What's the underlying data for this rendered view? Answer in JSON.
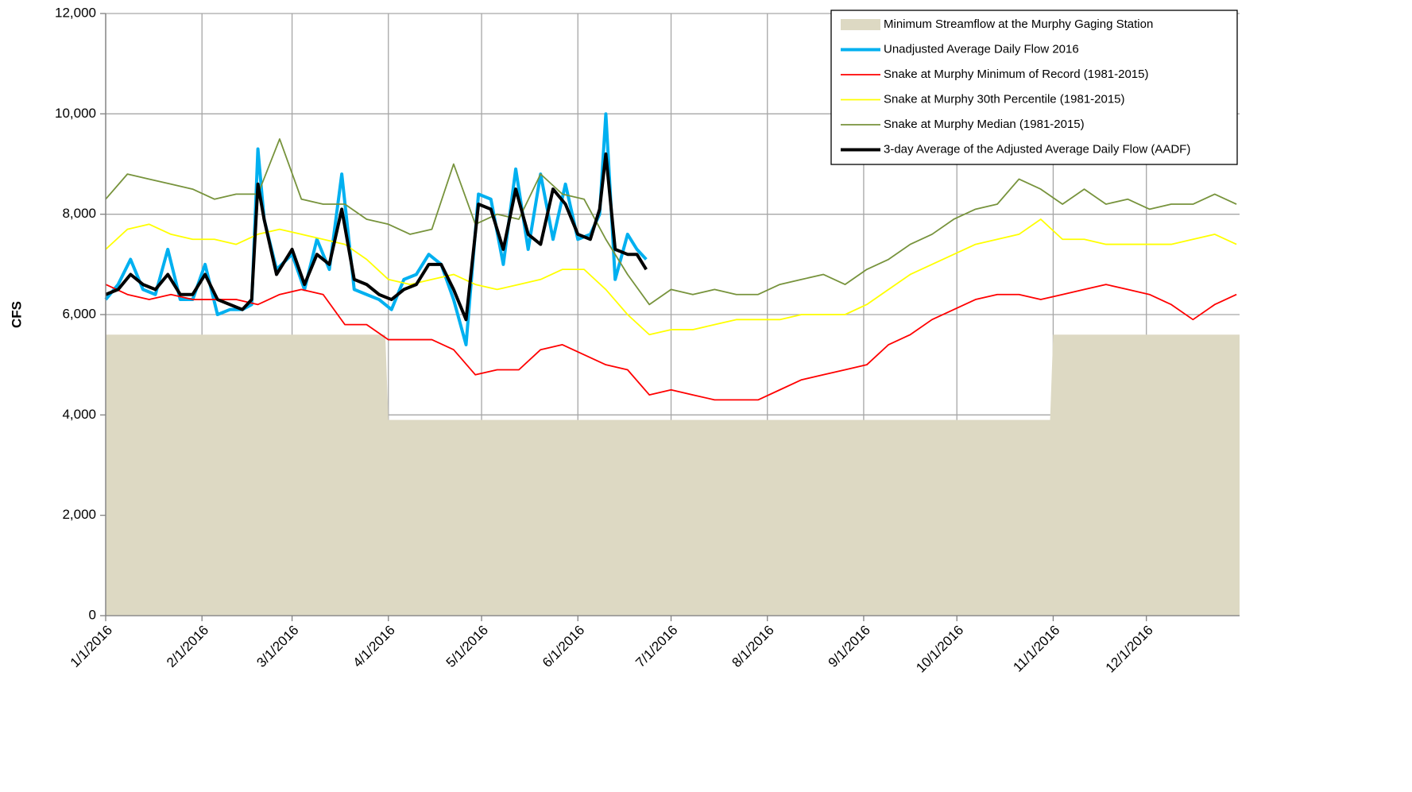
{
  "chart_data": {
    "type": "line",
    "ylabel": "CFS",
    "xlim": [
      "1/1/2016",
      "12/31/2016"
    ],
    "xticks": [
      "1/1/2016",
      "2/1/2016",
      "3/1/2016",
      "4/1/2016",
      "5/1/2016",
      "6/1/2016",
      "7/1/2016",
      "8/1/2016",
      "9/1/2016",
      "10/1/2016",
      "11/1/2016",
      "12/1/2016"
    ],
    "ylim": [
      0,
      12000
    ],
    "yticks": [
      0,
      {
        "value": 2000,
        "label": "2,000"
      },
      {
        "value": 4000,
        "label": "4,000"
      },
      {
        "value": 6000,
        "label": "6,000"
      },
      {
        "value": 8000,
        "label": "8,000"
      },
      {
        "value": 10000,
        "label": "10,000"
      },
      {
        "value": 12000,
        "label": "12,000"
      }
    ],
    "grid": true,
    "legend": "upper right",
    "x": [
      "1/1/2016",
      "1/8/2016",
      "1/15/2016",
      "1/22/2016",
      "1/29/2016",
      "2/5/2016",
      "2/12/2016",
      "2/19/2016",
      "2/26/2016",
      "3/4/2016",
      "3/11/2016",
      "3/18/2016",
      "3/25/2016",
      "4/1/2016",
      "4/8/2016",
      "4/15/2016",
      "4/22/2016",
      "4/29/2016",
      "5/6/2016",
      "5/13/2016",
      "5/20/2016",
      "5/27/2016",
      "6/3/2016",
      "6/10/2016",
      "6/17/2016",
      "6/24/2016",
      "7/1/2016",
      "7/8/2016",
      "7/15/2016",
      "7/22/2016",
      "7/29/2016",
      "8/5/2016",
      "8/12/2016",
      "8/19/2016",
      "8/26/2016",
      "9/2/2016",
      "9/9/2016",
      "9/16/2016",
      "9/23/2016",
      "9/30/2016",
      "10/7/2016",
      "10/14/2016",
      "10/21/2016",
      "10/28/2016",
      "11/4/2016",
      "11/11/2016",
      "11/18/2016",
      "11/25/2016",
      "12/2/2016",
      "12/9/2016",
      "12/16/2016",
      "12/23/2016",
      "12/30/2016"
    ],
    "series": [
      {
        "name": "Minimum Streamflow at the Murphy Gaging Station",
        "kind": "area",
        "color": "#ddd9c3",
        "x": [
          "1/1/2016",
          "3/31/2016",
          "4/1/2016",
          "10/31/2016",
          "11/1/2016",
          "12/31/2016"
        ],
        "values": [
          5600,
          5600,
          3900,
          3900,
          5600,
          5600
        ]
      },
      {
        "name": "Unadjusted Average Daily Flow 2016",
        "color": "#00b0f0",
        "width": 4,
        "x": [
          "1/1/2016",
          "1/5/2016",
          "1/9/2016",
          "1/13/2016",
          "1/17/2016",
          "1/21/2016",
          "1/25/2016",
          "1/29/2016",
          "2/2/2016",
          "2/6/2016",
          "2/10/2016",
          "2/14/2016",
          "2/17/2016",
          "2/19/2016",
          "2/21/2016",
          "2/25/2016",
          "3/1/2016",
          "3/5/2016",
          "3/9/2016",
          "3/13/2016",
          "3/17/2016",
          "3/21/2016",
          "3/25/2016",
          "3/29/2016",
          "4/2/2016",
          "4/6/2016",
          "4/10/2016",
          "4/14/2016",
          "4/18/2016",
          "4/22/2016",
          "4/26/2016",
          "4/30/2016",
          "5/4/2016",
          "5/8/2016",
          "5/12/2016",
          "5/16/2016",
          "5/20/2016",
          "5/24/2016",
          "5/28/2016",
          "6/1/2016",
          "6/5/2016",
          "6/8/2016",
          "6/10/2016",
          "6/13/2016",
          "6/17/2016",
          "6/20/2016",
          "6/23/2016"
        ],
        "values": [
          6300,
          6600,
          7100,
          6500,
          6400,
          7300,
          6300,
          6300,
          7000,
          6000,
          6100,
          6100,
          6200,
          9300,
          7900,
          6900,
          7200,
          6500,
          7500,
          6900,
          8800,
          6500,
          6400,
          6300,
          6100,
          6700,
          6800,
          7200,
          7000,
          6300,
          5400,
          8400,
          8300,
          7000,
          8900,
          7300,
          8800,
          7500,
          8600,
          7500,
          7600,
          8000,
          10000,
          6700,
          7600,
          7300,
          7100
        ]
      },
      {
        "name": "Snake at Murphy Minimum of Record (1981-2015)",
        "color": "#ff0000",
        "width": 1.8,
        "values": [
          6600,
          6400,
          6300,
          6400,
          6300,
          6300,
          6300,
          6200,
          6400,
          6500,
          6400,
          5800,
          5800,
          5500,
          5500,
          5500,
          5300,
          4800,
          4900,
          4900,
          5300,
          5400,
          5200,
          5000,
          4900,
          4400,
          4500,
          4400,
          4300,
          4300,
          4300,
          4500,
          4700,
          4800,
          4900,
          5000,
          5400,
          5600,
          5900,
          6100,
          6300,
          6400,
          6400,
          6300,
          6400,
          6500,
          6600,
          6500,
          6400,
          6200,
          5900,
          6200,
          6400
        ]
      },
      {
        "name": "Snake at Murphy 30th Percentile (1981-2015)",
        "color": "#ffff00",
        "width": 1.8,
        "values": [
          7300,
          7700,
          7800,
          7600,
          7500,
          7500,
          7400,
          7600,
          7700,
          7600,
          7500,
          7400,
          7100,
          6700,
          6600,
          6700,
          6800,
          6600,
          6500,
          6600,
          6700,
          6900,
          6900,
          6500,
          6000,
          5600,
          5700,
          5700,
          5800,
          5900,
          5900,
          5900,
          6000,
          6000,
          6000,
          6200,
          6500,
          6800,
          7000,
          7200,
          7400,
          7500,
          7600,
          7900,
          7500,
          7500,
          7400,
          7400,
          7400,
          7400,
          7500,
          7600,
          7400
        ]
      },
      {
        "name": "Snake at Murphy Median (1981-2015)",
        "color": "#77933c",
        "width": 1.8,
        "values": [
          8300,
          8800,
          8700,
          8600,
          8500,
          8300,
          8400,
          8400,
          9500,
          8300,
          8200,
          8200,
          7900,
          7800,
          7600,
          7700,
          9000,
          7800,
          8000,
          7900,
          8800,
          8400,
          8300,
          7500,
          6800,
          6200,
          6500,
          6400,
          6500,
          6400,
          6400,
          6600,
          6700,
          6800,
          6600,
          6900,
          7100,
          7400,
          7600,
          7900,
          8100,
          8200,
          8700,
          8500,
          8200,
          8500,
          8200,
          8300,
          8100,
          8200,
          8200,
          8400,
          8200
        ]
      },
      {
        "name": "3-day Average of the Adjusted Average Daily Flow (AADF)",
        "color": "#000000",
        "width": 4,
        "x": [
          "1/1/2016",
          "1/5/2016",
          "1/9/2016",
          "1/13/2016",
          "1/17/2016",
          "1/21/2016",
          "1/25/2016",
          "1/29/2016",
          "2/2/2016",
          "2/6/2016",
          "2/10/2016",
          "2/14/2016",
          "2/17/2016",
          "2/19/2016",
          "2/21/2016",
          "2/25/2016",
          "3/1/2016",
          "3/5/2016",
          "3/9/2016",
          "3/13/2016",
          "3/17/2016",
          "3/21/2016",
          "3/25/2016",
          "3/29/2016",
          "4/2/2016",
          "4/6/2016",
          "4/10/2016",
          "4/14/2016",
          "4/18/2016",
          "4/22/2016",
          "4/26/2016",
          "4/30/2016",
          "5/4/2016",
          "5/8/2016",
          "5/12/2016",
          "5/16/2016",
          "5/20/2016",
          "5/24/2016",
          "5/28/2016",
          "6/1/2016",
          "6/5/2016",
          "6/8/2016",
          "6/10/2016",
          "6/13/2016",
          "6/17/2016",
          "6/20/2016",
          "6/23/2016"
        ],
        "values": [
          6400,
          6500,
          6800,
          6600,
          6500,
          6800,
          6400,
          6400,
          6800,
          6300,
          6200,
          6100,
          6300,
          8600,
          7900,
          6800,
          7300,
          6600,
          7200,
          7000,
          8100,
          6700,
          6600,
          6400,
          6300,
          6500,
          6600,
          7000,
          7000,
          6500,
          5900,
          8200,
          8100,
          7300,
          8500,
          7600,
          7400,
          8500,
          8200,
          7600,
          7500,
          8100,
          9200,
          7300,
          7200,
          7200,
          6900
        ]
      }
    ]
  }
}
